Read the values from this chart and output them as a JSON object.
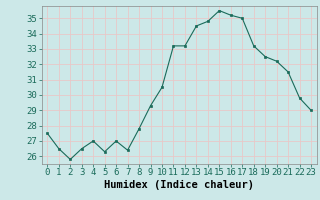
{
  "x": [
    0,
    1,
    2,
    3,
    4,
    5,
    6,
    7,
    8,
    9,
    10,
    11,
    12,
    13,
    14,
    15,
    16,
    17,
    18,
    19,
    20,
    21,
    22,
    23
  ],
  "y": [
    27.5,
    26.5,
    25.8,
    26.5,
    27.0,
    26.3,
    27.0,
    26.4,
    27.8,
    29.3,
    30.5,
    33.2,
    33.2,
    34.5,
    34.8,
    35.5,
    35.2,
    35.0,
    33.2,
    32.5,
    32.2,
    31.5,
    29.8,
    29.0
  ],
  "line_color": "#1a6b5a",
  "marker": "s",
  "marker_size": 2.0,
  "bg_color": "#cce8e8",
  "grid_color": "#e8c8c8",
  "xlabel": "Humidex (Indice chaleur)",
  "xlim": [
    -0.5,
    23.5
  ],
  "ylim": [
    25.5,
    35.8
  ],
  "yticks": [
    26,
    27,
    28,
    29,
    30,
    31,
    32,
    33,
    34,
    35
  ],
  "xticks": [
    0,
    1,
    2,
    3,
    4,
    5,
    6,
    7,
    8,
    9,
    10,
    11,
    12,
    13,
    14,
    15,
    16,
    17,
    18,
    19,
    20,
    21,
    22,
    23
  ],
  "tick_label_fontsize": 6.5,
  "xlabel_fontsize": 7.5
}
